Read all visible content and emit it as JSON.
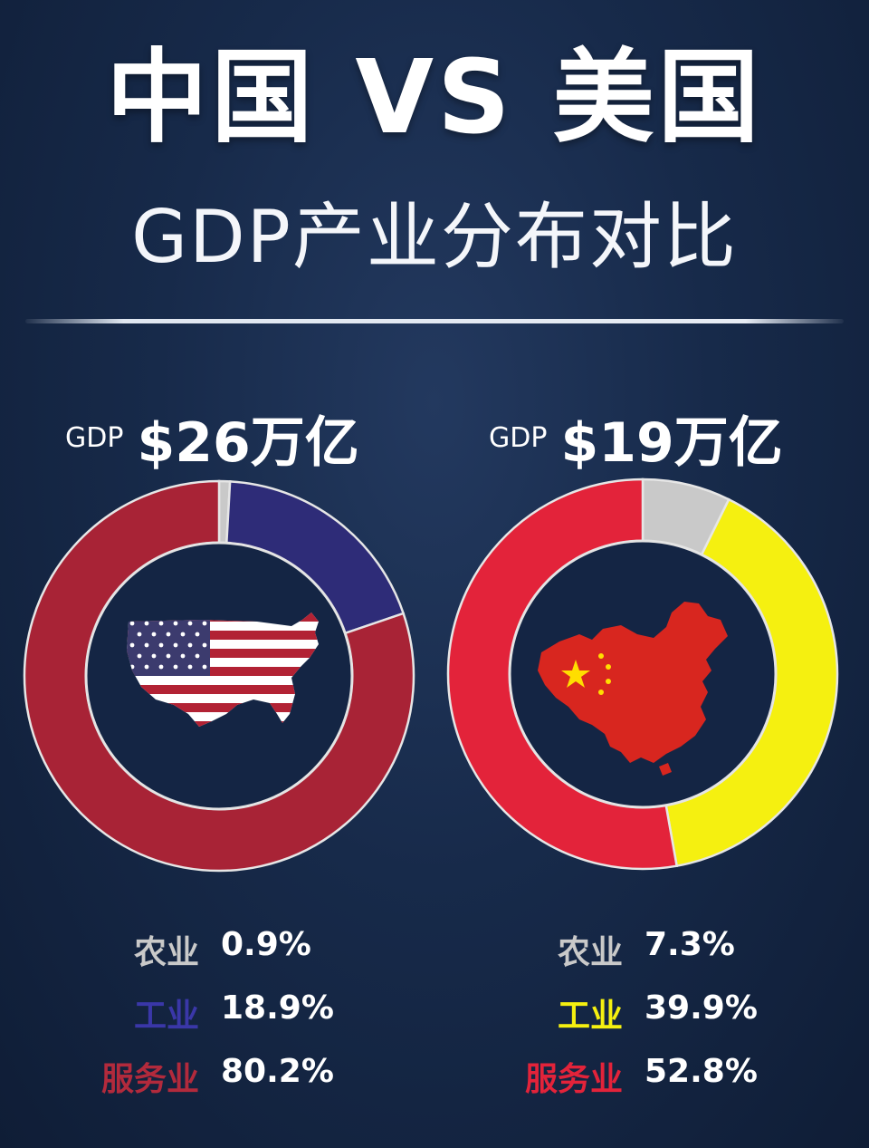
{
  "header": {
    "title": "中国 VS 美国",
    "subtitle": "GDP产业分布对比"
  },
  "colors": {
    "agriculture": "#c9c9c9",
    "us_industry": "#2e2c78",
    "us_services": "#a82336",
    "cn_industry": "#f5f010",
    "cn_services": "#e3233a",
    "background": "#172a4a"
  },
  "chart_data": [
    {
      "type": "pie",
      "country_icon": "usa-flag-map-icon",
      "gdp_label": "GDP",
      "gdp_value": "$26万亿",
      "slices": [
        {
          "label": "农业",
          "value": 0.9,
          "value_text": "0.9%",
          "color": "#c9c9c9"
        },
        {
          "label": "工业",
          "value": 18.9,
          "value_text": "18.9%",
          "color": "#2e2c78"
        },
        {
          "label": "服务业",
          "value": 80.2,
          "value_text": "80.2%",
          "color": "#a82336"
        }
      ]
    },
    {
      "type": "pie",
      "country_icon": "china-flag-map-icon",
      "gdp_label": "GDP",
      "gdp_value": "$19万亿",
      "slices": [
        {
          "label": "农业",
          "value": 7.3,
          "value_text": "7.3%",
          "color": "#c9c9c9"
        },
        {
          "label": "工业",
          "value": 39.9,
          "value_text": "39.9%",
          "color": "#f5f010"
        },
        {
          "label": "服务业",
          "value": 52.8,
          "value_text": "52.8%",
          "color": "#e3233a"
        }
      ]
    }
  ]
}
